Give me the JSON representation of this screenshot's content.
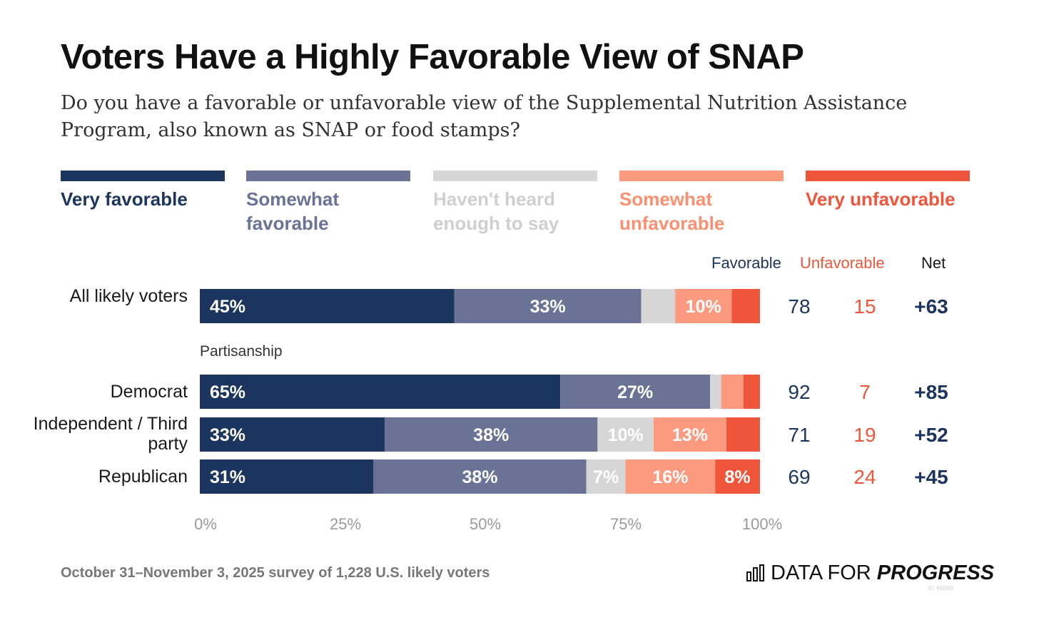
{
  "title": "Voters Have a Highly Favorable View of SNAP",
  "subtitle": "Do you have a favorable or unfavorable view of the Supplemental Nutrition Assistance Program, also known as SNAP or food stamps?",
  "colors": {
    "very_favorable": "#1c355e",
    "somewhat_favorable": "#6a7396",
    "havent_heard": "#d6d6d6",
    "somewhat_unfavorable": "#fc9a7f",
    "very_unfavorable": "#ef553b"
  },
  "legend": [
    {
      "key": "very_favorable",
      "label": "Very favorable"
    },
    {
      "key": "somewhat_favorable",
      "label": "Somewhat favorable"
    },
    {
      "key": "havent_heard",
      "label": "Haven't heard enough to say"
    },
    {
      "key": "somewhat_unfavorable",
      "label": "Somewhat unfavorable"
    },
    {
      "key": "very_unfavorable",
      "label": "Very unfavorable"
    }
  ],
  "columns": {
    "favorable": "Favorable",
    "unfavorable": "Unfavorable",
    "net": "Net"
  },
  "group_label": "Partisanship",
  "chart_data": {
    "type": "bar",
    "orientation": "horizontal",
    "stacked": true,
    "categories": [
      "All likely voters",
      "Democrat",
      "Independent / Third party",
      "Republican"
    ],
    "series": [
      {
        "name": "Very favorable",
        "values": [
          45,
          65,
          33,
          31
        ],
        "labels": [
          "45%",
          "65%",
          "33%",
          "31%"
        ]
      },
      {
        "name": "Somewhat favorable",
        "values": [
          33,
          27,
          38,
          38
        ],
        "labels": [
          "33%",
          "27%",
          "38%",
          "38%"
        ]
      },
      {
        "name": "Haven't heard enough to say",
        "values": [
          6,
          2,
          10,
          7
        ],
        "labels": [
          "",
          "",
          "10%",
          "7%"
        ]
      },
      {
        "name": "Somewhat unfavorable",
        "values": [
          10,
          4,
          13,
          16
        ],
        "labels": [
          "10%",
          "",
          "13%",
          "16%"
        ]
      },
      {
        "name": "Very unfavorable",
        "values": [
          5,
          3,
          6,
          8
        ],
        "labels": [
          "",
          "",
          "",
          "8%"
        ]
      }
    ],
    "favorable": [
      78,
      92,
      71,
      69
    ],
    "unfavorable": [
      15,
      7,
      19,
      24
    ],
    "net": [
      "+63",
      "+85",
      "+52",
      "+45"
    ],
    "xlim": [
      0,
      100
    ],
    "xticks": [
      "0%",
      "25%",
      "50%",
      "75%",
      "100%"
    ]
  },
  "footer": "October 31–November 3, 2025 survey of 1,228 U.S. likely voters",
  "brand": {
    "text_regular": "DATA FOR",
    "text_bold": "PROGRESS",
    "logo_icon": "bar-chart-icon"
  },
  "id_tag": "ID: N0000"
}
